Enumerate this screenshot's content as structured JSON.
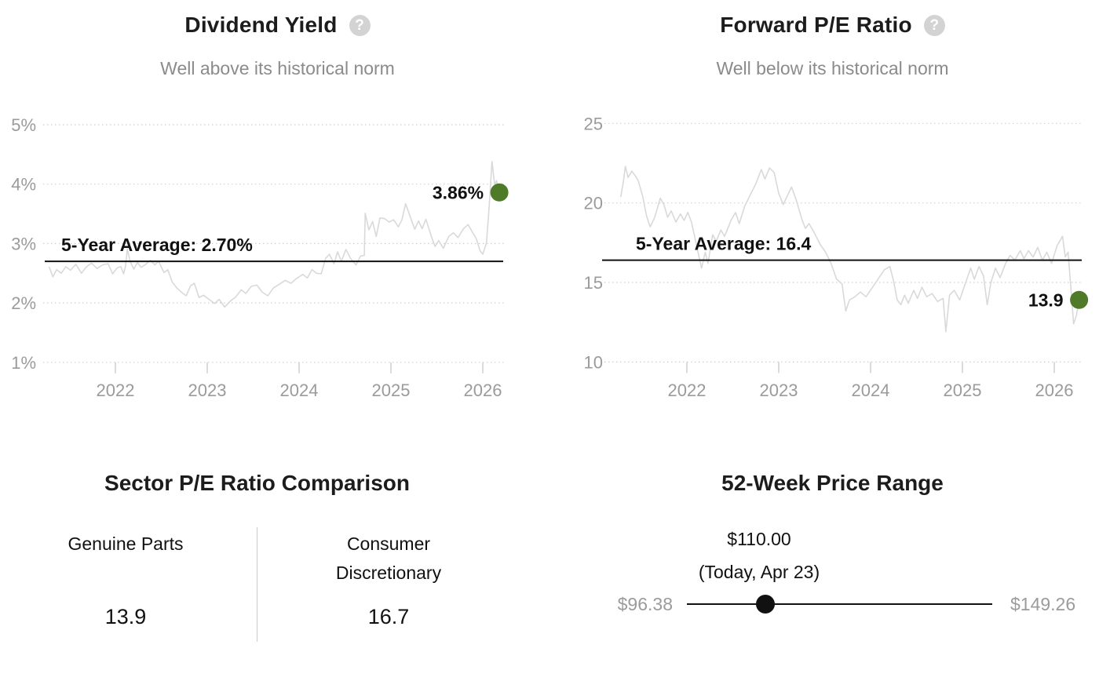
{
  "colors": {
    "accent_green": "#4f7a28",
    "series_line": "#d9d9d9",
    "grid_line": "#cfcfcf",
    "axis_text": "#9b9b9b",
    "subtitle_text": "#8b8b8b",
    "title_text": "#1c1c1c",
    "average_line": "#111111",
    "slider": "#111111",
    "help_icon_bg": "#d3d3d3"
  },
  "icons": {
    "help_glyph": "?"
  },
  "chart_data": [
    {
      "type": "line",
      "title": "Dividend Yield",
      "subtitle": "Well above its historical norm",
      "unit": "%",
      "grid": "horizontal-dotted",
      "legend": "none",
      "xlim": [
        2021.28,
        2026.42
      ],
      "ylim": [
        0.8,
        5.2
      ],
      "y_ticks": [
        {
          "value": 5,
          "label": "5%"
        },
        {
          "value": 4,
          "label": "4%"
        },
        {
          "value": 3,
          "label": "3%"
        },
        {
          "value": 2,
          "label": "2%"
        },
        {
          "value": 1,
          "label": "1%"
        }
      ],
      "x_ticks": [
        2022,
        2023,
        2024,
        2025,
        2026
      ],
      "average": 2.7,
      "average_label": "5-Year Average: 2.70%",
      "current": 3.86,
      "current_label": "3.86%",
      "points": [
        [
          2021.28,
          2.6
        ],
        [
          2021.32,
          2.44
        ],
        [
          2021.36,
          2.56
        ],
        [
          2021.41,
          2.5
        ],
        [
          2021.46,
          2.61
        ],
        [
          2021.51,
          2.55
        ],
        [
          2021.57,
          2.65
        ],
        [
          2021.63,
          2.5
        ],
        [
          2021.68,
          2.6
        ],
        [
          2021.74,
          2.67
        ],
        [
          2021.8,
          2.58
        ],
        [
          2021.86,
          2.64
        ],
        [
          2021.92,
          2.66
        ],
        [
          2021.97,
          2.49
        ],
        [
          2022.02,
          2.59
        ],
        [
          2022.06,
          2.61
        ],
        [
          2022.09,
          2.49
        ],
        [
          2022.11,
          2.62
        ],
        [
          2022.13,
          2.91
        ],
        [
          2022.16,
          2.7
        ],
        [
          2022.2,
          2.57
        ],
        [
          2022.24,
          2.68
        ],
        [
          2022.28,
          2.6
        ],
        [
          2022.33,
          2.65
        ],
        [
          2022.38,
          2.72
        ],
        [
          2022.43,
          2.64
        ],
        [
          2022.47,
          2.7
        ],
        [
          2022.53,
          2.51
        ],
        [
          2022.57,
          2.56
        ],
        [
          2022.62,
          2.35
        ],
        [
          2022.67,
          2.25
        ],
        [
          2022.72,
          2.18
        ],
        [
          2022.77,
          2.12
        ],
        [
          2022.82,
          2.29
        ],
        [
          2022.86,
          2.33
        ],
        [
          2022.91,
          2.09
        ],
        [
          2022.96,
          2.13
        ],
        [
          2023.02,
          2.06
        ],
        [
          2023.08,
          1.99
        ],
        [
          2023.13,
          2.06
        ],
        [
          2023.19,
          1.93
        ],
        [
          2023.25,
          2.03
        ],
        [
          2023.31,
          2.1
        ],
        [
          2023.37,
          2.22
        ],
        [
          2023.42,
          2.16
        ],
        [
          2023.48,
          2.28
        ],
        [
          2023.54,
          2.3
        ],
        [
          2023.6,
          2.18
        ],
        [
          2023.66,
          2.12
        ],
        [
          2023.72,
          2.25
        ],
        [
          2023.79,
          2.32
        ],
        [
          2023.85,
          2.38
        ],
        [
          2023.91,
          2.33
        ],
        [
          2023.97,
          2.41
        ],
        [
          2024.04,
          2.48
        ],
        [
          2024.09,
          2.42
        ],
        [
          2024.14,
          2.56
        ],
        [
          2024.19,
          2.5
        ],
        [
          2024.24,
          2.49
        ],
        [
          2024.29,
          2.75
        ],
        [
          2024.33,
          2.82
        ],
        [
          2024.38,
          2.66
        ],
        [
          2024.42,
          2.86
        ],
        [
          2024.46,
          2.7
        ],
        [
          2024.51,
          2.9
        ],
        [
          2024.56,
          2.75
        ],
        [
          2024.62,
          2.64
        ],
        [
          2024.67,
          2.79
        ],
        [
          2024.71,
          2.8
        ],
        [
          2024.72,
          3.51
        ],
        [
          2024.76,
          3.23
        ],
        [
          2024.8,
          3.37
        ],
        [
          2024.84,
          3.12
        ],
        [
          2024.88,
          3.43
        ],
        [
          2024.93,
          3.42
        ],
        [
          2024.98,
          3.36
        ],
        [
          2025.03,
          3.4
        ],
        [
          2025.08,
          3.28
        ],
        [
          2025.12,
          3.4
        ],
        [
          2025.16,
          3.67
        ],
        [
          2025.21,
          3.45
        ],
        [
          2025.26,
          3.24
        ],
        [
          2025.3,
          3.38
        ],
        [
          2025.34,
          3.25
        ],
        [
          2025.38,
          3.41
        ],
        [
          2025.44,
          3.12
        ],
        [
          2025.48,
          2.95
        ],
        [
          2025.52,
          3.05
        ],
        [
          2025.57,
          2.92
        ],
        [
          2025.63,
          3.12
        ],
        [
          2025.68,
          3.18
        ],
        [
          2025.73,
          3.1
        ],
        [
          2025.79,
          3.25
        ],
        [
          2025.84,
          3.32
        ],
        [
          2025.88,
          3.21
        ],
        [
          2025.93,
          3.08
        ],
        [
          2025.97,
          2.88
        ],
        [
          2026.0,
          2.82
        ],
        [
          2026.04,
          3.01
        ],
        [
          2026.07,
          3.63
        ],
        [
          2026.1,
          4.38
        ],
        [
          2026.13,
          3.98
        ],
        [
          2026.15,
          4.06
        ],
        [
          2026.18,
          3.86
        ]
      ]
    },
    {
      "type": "line",
      "title": "Forward P/E Ratio",
      "subtitle": "Well below its historical norm",
      "unit": "",
      "grid": "horizontal-dotted",
      "legend": "none",
      "xlim": [
        2021.28,
        2026.42
      ],
      "ylim": [
        9.5,
        25.8
      ],
      "y_ticks": [
        {
          "value": 25,
          "label": "25"
        },
        {
          "value": 20,
          "label": "20"
        },
        {
          "value": 15,
          "label": "15"
        },
        {
          "value": 10,
          "label": "10"
        }
      ],
      "x_ticks": [
        2022,
        2023,
        2024,
        2025,
        2026
      ],
      "average": 16.4,
      "average_label": "5-Year Average: 16.4",
      "current": 13.9,
      "current_label": "13.9",
      "points": [
        [
          2021.28,
          20.4
        ],
        [
          2021.31,
          21.4
        ],
        [
          2021.33,
          22.3
        ],
        [
          2021.36,
          21.6
        ],
        [
          2021.4,
          22.0
        ],
        [
          2021.44,
          21.7
        ],
        [
          2021.47,
          21.4
        ],
        [
          2021.52,
          20.4
        ],
        [
          2021.56,
          19.2
        ],
        [
          2021.6,
          18.5
        ],
        [
          2021.65,
          19.1
        ],
        [
          2021.71,
          20.3
        ],
        [
          2021.75,
          19.9
        ],
        [
          2021.79,
          19.1
        ],
        [
          2021.83,
          19.5
        ],
        [
          2021.88,
          18.8
        ],
        [
          2021.93,
          19.3
        ],
        [
          2021.97,
          18.9
        ],
        [
          2022.01,
          19.4
        ],
        [
          2022.05,
          18.8
        ],
        [
          2022.08,
          18.0
        ],
        [
          2022.11,
          17.2
        ],
        [
          2022.14,
          16.4
        ],
        [
          2022.16,
          15.9
        ],
        [
          2022.2,
          16.9
        ],
        [
          2022.23,
          16.2
        ],
        [
          2022.28,
          18.0
        ],
        [
          2022.32,
          17.6
        ],
        [
          2022.37,
          18.3
        ],
        [
          2022.41,
          17.9
        ],
        [
          2022.48,
          18.9
        ],
        [
          2022.53,
          19.4
        ],
        [
          2022.57,
          18.7
        ],
        [
          2022.63,
          19.8
        ],
        [
          2022.69,
          20.5
        ],
        [
          2022.75,
          21.2
        ],
        [
          2022.81,
          22.1
        ],
        [
          2022.85,
          21.5
        ],
        [
          2022.9,
          22.2
        ],
        [
          2022.95,
          21.9
        ],
        [
          2023.0,
          20.6
        ],
        [
          2023.05,
          19.9
        ],
        [
          2023.09,
          20.4
        ],
        [
          2023.14,
          21.0
        ],
        [
          2023.19,
          20.2
        ],
        [
          2023.25,
          19.0
        ],
        [
          2023.29,
          18.4
        ],
        [
          2023.33,
          18.7
        ],
        [
          2023.39,
          18.1
        ],
        [
          2023.45,
          17.4
        ],
        [
          2023.51,
          16.9
        ],
        [
          2023.57,
          16.2
        ],
        [
          2023.63,
          15.2
        ],
        [
          2023.69,
          14.9
        ],
        [
          2023.73,
          13.2
        ],
        [
          2023.77,
          13.9
        ],
        [
          2023.83,
          14.1
        ],
        [
          2023.89,
          14.4
        ],
        [
          2023.95,
          14.1
        ],
        [
          2024.01,
          14.6
        ],
        [
          2024.08,
          15.2
        ],
        [
          2024.15,
          15.8
        ],
        [
          2024.21,
          16.0
        ],
        [
          2024.25,
          15.1
        ],
        [
          2024.29,
          13.9
        ],
        [
          2024.33,
          13.6
        ],
        [
          2024.37,
          14.2
        ],
        [
          2024.41,
          13.7
        ],
        [
          2024.47,
          14.5
        ],
        [
          2024.51,
          14.0
        ],
        [
          2024.56,
          14.7
        ],
        [
          2024.61,
          14.1
        ],
        [
          2024.67,
          14.3
        ],
        [
          2024.73,
          13.8
        ],
        [
          2024.79,
          14.0
        ],
        [
          2024.82,
          11.9
        ],
        [
          2024.86,
          14.2
        ],
        [
          2024.91,
          14.5
        ],
        [
          2024.97,
          13.9
        ],
        [
          2025.03,
          14.9
        ],
        [
          2025.09,
          15.9
        ],
        [
          2025.13,
          15.2
        ],
        [
          2025.18,
          16.0
        ],
        [
          2025.23,
          15.4
        ],
        [
          2025.27,
          13.6
        ],
        [
          2025.31,
          15.0
        ],
        [
          2025.36,
          15.9
        ],
        [
          2025.41,
          15.3
        ],
        [
          2025.47,
          16.2
        ],
        [
          2025.52,
          16.7
        ],
        [
          2025.57,
          16.4
        ],
        [
          2025.63,
          17.0
        ],
        [
          2025.67,
          16.5
        ],
        [
          2025.72,
          17.0
        ],
        [
          2025.77,
          16.6
        ],
        [
          2025.82,
          17.2
        ],
        [
          2025.87,
          16.4
        ],
        [
          2025.92,
          16.9
        ],
        [
          2025.97,
          16.2
        ],
        [
          2026.03,
          17.3
        ],
        [
          2026.09,
          17.9
        ],
        [
          2026.12,
          16.6
        ],
        [
          2026.15,
          16.9
        ],
        [
          2026.18,
          14.7
        ],
        [
          2026.21,
          12.4
        ],
        [
          2026.24,
          12.9
        ],
        [
          2026.27,
          13.9
        ]
      ]
    },
    {
      "type": "table",
      "title": "Sector P/E Ratio Comparison",
      "columns": [
        "Genuine Parts",
        "Consumer Discretionary"
      ],
      "values": [
        "13.9",
        "16.7"
      ]
    },
    {
      "type": "range",
      "title": "52-Week Price Range",
      "min": 96.38,
      "max": 149.26,
      "current": 110.0,
      "min_label": "$96.38",
      "max_label": "$149.26",
      "current_label": "$110.00",
      "current_sublabel": "(Today, Apr 23)"
    }
  ]
}
